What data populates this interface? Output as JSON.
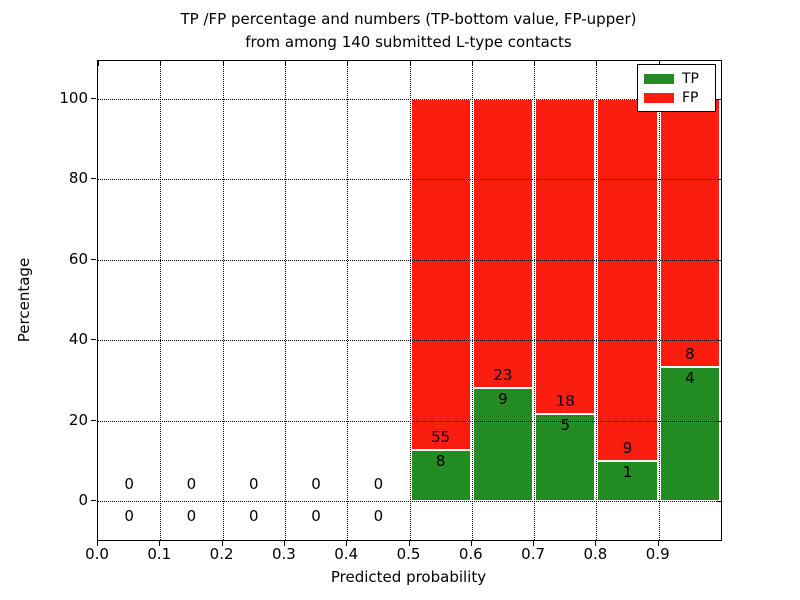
{
  "title": {
    "line1": "TP /FP percentage and numbers (TP-bottom value, FP-upper)",
    "line2": "from among 140 submitted L-type contacts"
  },
  "axes": {
    "xlabel": "Predicted probability",
    "ylabel": "Percentage",
    "x_tick_labels": [
      "0.0",
      "0.1",
      "0.2",
      "0.3",
      "0.4",
      "0.5",
      "0.6",
      "0.7",
      "0.8",
      "0.9"
    ],
    "y_tick_labels": [
      "0",
      "20",
      "40",
      "60",
      "80",
      "100"
    ]
  },
  "legend": {
    "items": [
      {
        "label": "TP",
        "color": "#228b22"
      },
      {
        "label": "FP",
        "color": "#fb1d10"
      }
    ]
  },
  "chart_data": {
    "type": "bar",
    "stacked": true,
    "title": "TP /FP percentage and numbers (TP-bottom value, FP-upper) from among 140 submitted L-type contacts",
    "xlabel": "Predicted probability",
    "ylabel": "Percentage",
    "xlim": [
      0.0,
      1.0
    ],
    "ylim": [
      -10,
      110
    ],
    "grid": true,
    "legend_position": "upper right",
    "bin_width": 0.1,
    "x_gridlines": [
      0.1,
      0.2,
      0.3,
      0.4,
      0.5,
      0.6,
      0.7,
      0.8,
      0.9
    ],
    "y_gridlines": [
      0,
      20,
      40,
      60,
      80,
      100
    ],
    "x_ticks": [
      0.0,
      0.1,
      0.2,
      0.3,
      0.4,
      0.5,
      0.6,
      0.7,
      0.8,
      0.9
    ],
    "y_ticks": [
      0,
      20,
      40,
      60,
      80,
      100
    ],
    "series": [
      {
        "name": "TP",
        "color": "#228b22"
      },
      {
        "name": "FP",
        "color": "#fb1d10"
      }
    ],
    "bins": [
      {
        "x_start": 0.0,
        "tp_count": 0,
        "fp_count": 0,
        "tp_pct": 0,
        "fp_pct": 0
      },
      {
        "x_start": 0.1,
        "tp_count": 0,
        "fp_count": 0,
        "tp_pct": 0,
        "fp_pct": 0
      },
      {
        "x_start": 0.2,
        "tp_count": 0,
        "fp_count": 0,
        "tp_pct": 0,
        "fp_pct": 0
      },
      {
        "x_start": 0.3,
        "tp_count": 0,
        "fp_count": 0,
        "tp_pct": 0,
        "fp_pct": 0
      },
      {
        "x_start": 0.4,
        "tp_count": 0,
        "fp_count": 0,
        "tp_pct": 0,
        "fp_pct": 0
      },
      {
        "x_start": 0.5,
        "tp_count": 8,
        "fp_count": 55,
        "tp_pct": 12.7,
        "fp_pct": 87.3
      },
      {
        "x_start": 0.6,
        "tp_count": 9,
        "fp_count": 23,
        "tp_pct": 28.1,
        "fp_pct": 71.9
      },
      {
        "x_start": 0.7,
        "tp_count": 5,
        "fp_count": 18,
        "tp_pct": 21.7,
        "fp_pct": 78.3
      },
      {
        "x_start": 0.8,
        "tp_count": 1,
        "fp_count": 9,
        "tp_pct": 10.0,
        "fp_pct": 90.0
      },
      {
        "x_start": 0.9,
        "tp_count": 4,
        "fp_count": 8,
        "tp_pct": 33.3,
        "fp_pct": 66.7
      }
    ]
  }
}
